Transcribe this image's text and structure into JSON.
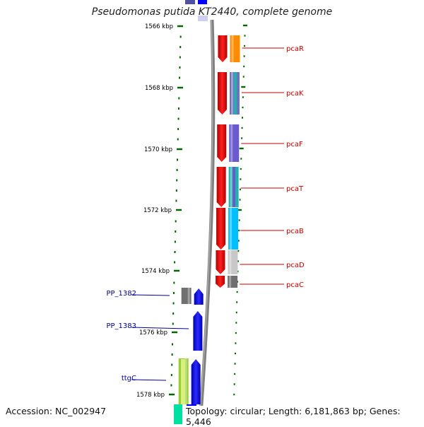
{
  "title": "Pseudomonas putida KT2440, complete genome",
  "footer": {
    "accession": "Accession: NC_002947",
    "stats": "Topology: circular; Length: 6,181,863 bp; Genes: 5,446"
  },
  "ruler": {
    "ticks": [
      "1566 kbp",
      "1568 kbp",
      "1570 kbp",
      "1572 kbp",
      "1574 kbp",
      "1576 kbp",
      "1578 kbp"
    ]
  },
  "colors": {
    "label_forward": "#cc0000",
    "label_reverse": "#000099",
    "backbone": "#808080",
    "tick": "#006600"
  },
  "genes": {
    "forward": [
      {
        "label": "pcaR",
        "color": "#ff0000",
        "cog_color": "#ff8c00"
      },
      {
        "label": "pcaK",
        "color": "#ff0000",
        "cog_color": "#7070c0"
      },
      {
        "label": "pcaF",
        "color": "#ff0000",
        "cog_color": "#6a5acd"
      },
      {
        "label": "pcaT",
        "color": "#ff0000",
        "cog_color": "#20b2aa"
      },
      {
        "label": "pcaB",
        "color": "#ff0000",
        "cog_color": "#00bfff"
      },
      {
        "label": "pcaD",
        "color": "#ff0000",
        "cog_color": "#c8c8c8"
      },
      {
        "label": "pcaC",
        "color": "#ff0000",
        "cog_color": "#707070"
      }
    ],
    "reverse": [
      {
        "label": "PP_1382",
        "color": "#0000ff",
        "cog_color": "#707070"
      },
      {
        "label": "PP_1383",
        "color": "#0000ff",
        "cog_color": ""
      },
      {
        "label": "ttgC",
        "color": "#0000ff",
        "cog_color": "#9acd32"
      }
    ]
  }
}
